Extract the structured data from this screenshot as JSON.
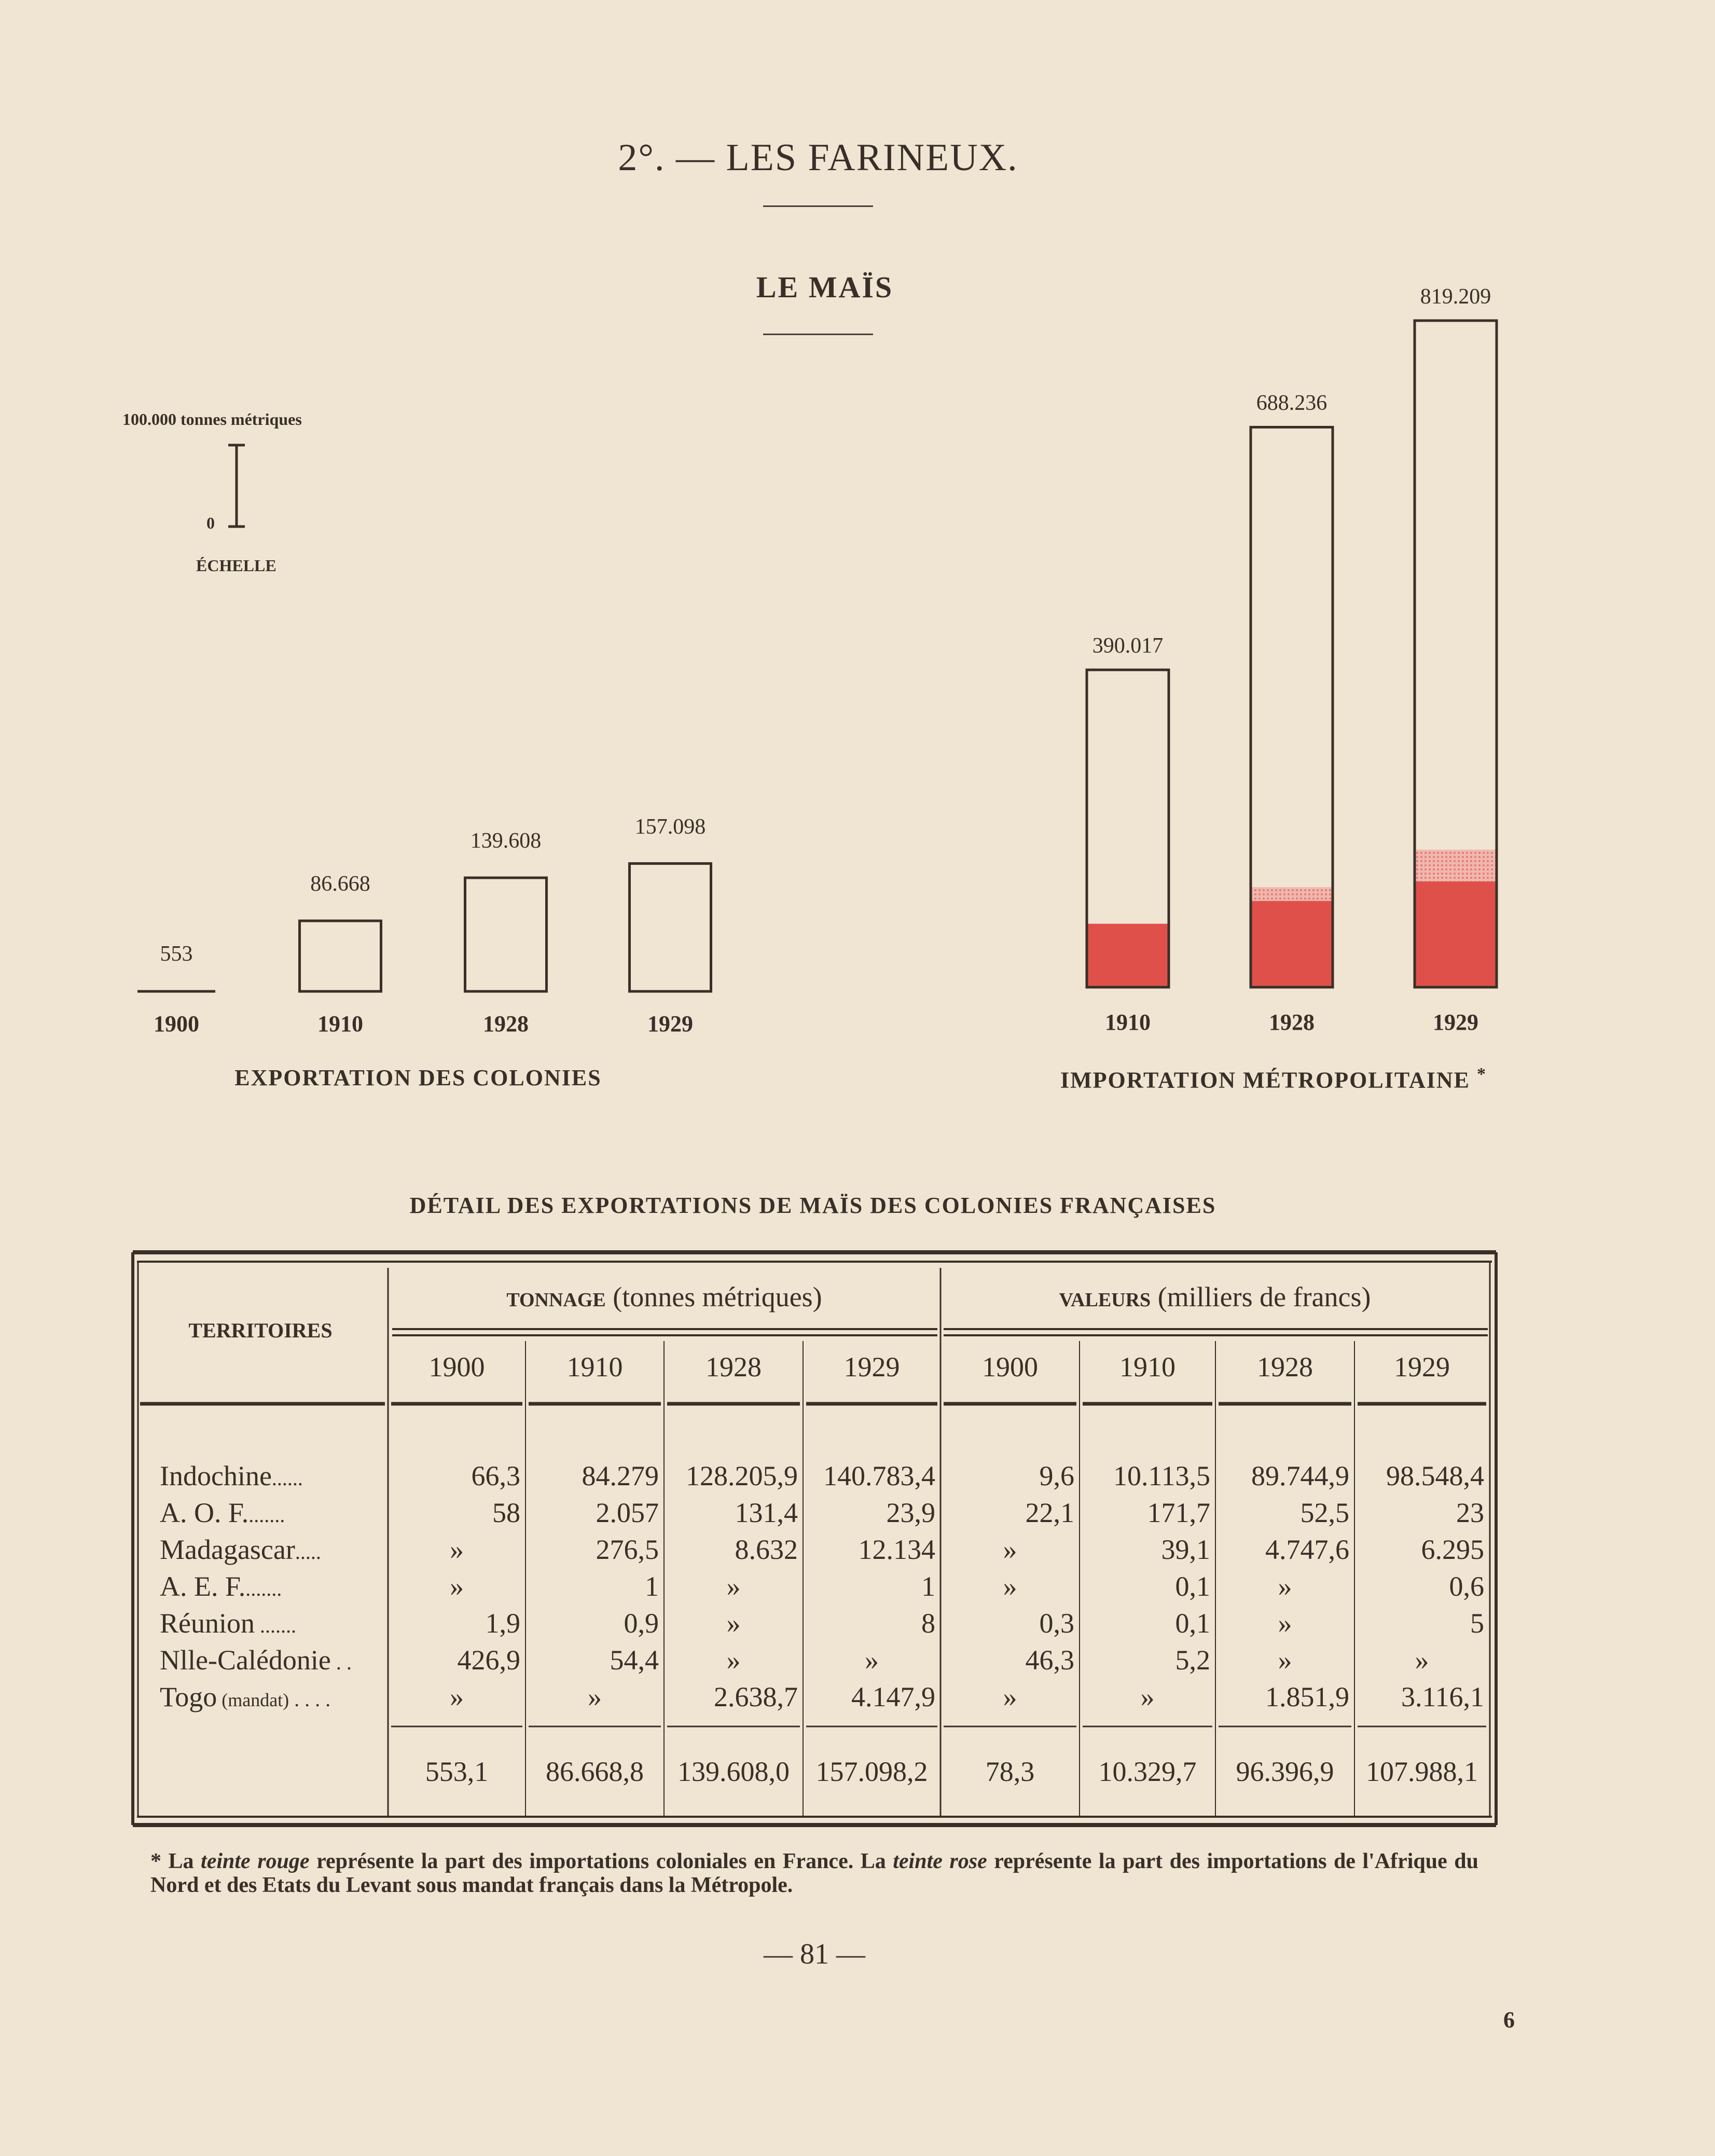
{
  "page": {
    "section_title": "2°. — LES FARINEUX.",
    "chart_title": "LE MAÏS",
    "scale": {
      "top_label": "100.000 tonnes métriques",
      "zero_label": "0",
      "caption": "ÉCHELLE"
    },
    "export_caption": "EXPORTATION DES COLONIES",
    "import_caption": "IMPORTATION MÉTROPOLITAINE",
    "import_asterisk": "*",
    "table_title": "DÉTAIL DES EXPORTATIONS DE MAÏS DES COLONIES FRANÇAISES",
    "footnote": "* La teinte rouge représente la part des importations coloniales en France. La teinte rose représente la part des importations de l'Afrique du Nord et des Etats du Levant sous mandat français dans la Métropole.",
    "page_number": "— 81 —",
    "corner_mark": "6"
  },
  "colors": {
    "background": "#efe5d2",
    "ink": "#3a2f28",
    "red": "#e0504a",
    "pink": "#f0b7ae"
  },
  "chart_data": [
    {
      "type": "bar",
      "title": "EXPORTATION DES COLONIES",
      "units": "tonnes métriques",
      "categories": [
        "1900",
        "1910",
        "1928",
        "1929"
      ],
      "values": [
        553,
        86668,
        139608,
        157098
      ],
      "value_labels": [
        "553",
        "86.668",
        "139.608",
        "157.098"
      ]
    },
    {
      "type": "bar",
      "title": "IMPORTATION MÉTROPOLITAINE",
      "units": "tonnes métriques",
      "categories": [
        "1910",
        "1928",
        "1929"
      ],
      "values": [
        390017,
        688236,
        819209
      ],
      "value_labels": [
        "390.017",
        "688.236",
        "819.209"
      ],
      "series": [
        {
          "name": "teinte rouge",
          "values": [
            78000,
            106000,
            130000
          ]
        },
        {
          "name": "teinte rose",
          "values": [
            0,
            17000,
            39000
          ]
        }
      ]
    }
  ],
  "table": {
    "col_territoires": "TERRITOIRES",
    "group_tonnage_caps": "TONNAGE",
    "group_tonnage_rest": "(tonnes métriques)",
    "group_valeurs_caps": "VALEURS",
    "group_valeurs_rest": "(milliers de francs)",
    "years": [
      "1900",
      "1910",
      "1928",
      "1929",
      "1900",
      "1910",
      "1928",
      "1929"
    ],
    "rows": [
      {
        "name": "Indochine",
        "note": "",
        "dots": "......",
        "values": [
          "66,3",
          "84.279",
          "128.205,9",
          "140.783,4",
          "9,6",
          "10.113,5",
          "89.744,9",
          "98.548,4"
        ]
      },
      {
        "name": "A. O. F.",
        "note": "",
        "dots": ".......",
        "values": [
          "58",
          "2.057",
          "131,4",
          "23,9",
          "22,1",
          "171,7",
          "52,5",
          "23"
        ]
      },
      {
        "name": "Madagascar",
        "note": "",
        "dots": ".....",
        "values": [
          "»",
          "276,5",
          "8.632",
          "12.134",
          "»",
          "39,1",
          "4.747,6",
          "6.295"
        ]
      },
      {
        "name": "A. E. F.",
        "note": "",
        "dots": ".......",
        "values": [
          "»",
          "1",
          "»",
          "1",
          "»",
          "0,1",
          "»",
          "0,6"
        ]
      },
      {
        "name": "Réunion",
        "note": "",
        "dots": " .......",
        "values": [
          "1,9",
          "0,9",
          "»",
          "8",
          "0,3",
          "0,1",
          "»",
          "5"
        ]
      },
      {
        "name": "Nlle-Calédonie",
        "note": "",
        "dots": " . .",
        "values": [
          "426,9",
          "54,4",
          "»",
          "»",
          "46,3",
          "5,2",
          "»",
          "»"
        ]
      },
      {
        "name": "Togo",
        "note": "(mandat)",
        "dots": " . . . .",
        "values": [
          "»",
          "»",
          "2.638,7",
          "4.147,9",
          "»",
          "»",
          "1.851,9",
          "3.116,1"
        ]
      }
    ],
    "totals": [
      "553,1",
      "86.668,8",
      "139.608,0",
      "157.098,2",
      "78,3",
      "10.329,7",
      "96.396,9",
      "107.988,1"
    ]
  }
}
